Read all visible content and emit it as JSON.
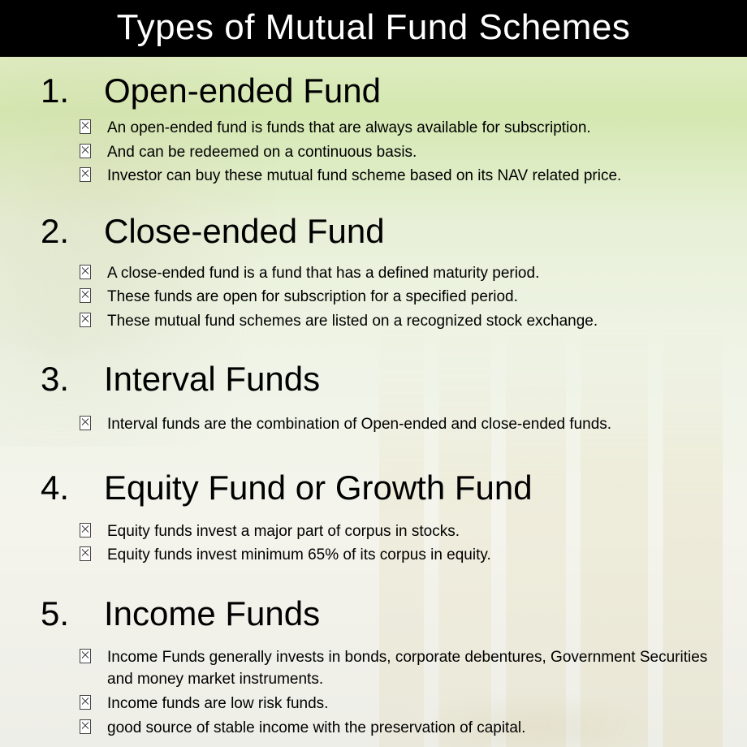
{
  "colors": {
    "header_bg": "#000000",
    "header_text": "#ffffff",
    "body_text": "#000000",
    "bg_top": "#e8f0d0",
    "bg_mid": "#d4e8b0",
    "bg_bottom": "#eeeee8",
    "coin_tint": "#c8b464"
  },
  "typography": {
    "header_fontsize": 44,
    "section_heading_fontsize": 42,
    "bullet_fontsize": 19,
    "font_family": "Segoe UI / Helvetica Neue"
  },
  "title": "Types of Mutual Fund Schemes",
  "sections": [
    {
      "num": "1.",
      "heading": "Open-ended Fund",
      "bullets": [
        "An open-ended fund is funds that are always available for subscription.",
        "And can be redeemed on a continuous basis.",
        "Investor can buy these mutual fund scheme based on its NAV related price."
      ]
    },
    {
      "num": "2.",
      "heading": "Close-ended Fund",
      "bullets": [
        "A close-ended fund is a fund that has a defined maturity period.",
        "These funds are open for subscription for a specified period.",
        "These mutual fund schemes are listed on a recognized stock exchange."
      ]
    },
    {
      "num": "3.",
      "heading": "Interval Funds",
      "bullets": [
        "Interval funds are the combination of Open-ended and close-ended funds."
      ]
    },
    {
      "num": "4.",
      "heading": "Equity Fund or Growth Fund",
      "bullets": [
        "Equity funds invest a major part of corpus in stocks.",
        "Equity funds invest minimum 65% of its corpus in equity."
      ]
    },
    {
      "num": "5.",
      "heading": "Income Funds",
      "bullets": [
        "Income Funds generally invests in bonds, corporate debentures, Government Securities and money market instruments.",
        "Income funds are low risk funds.",
        "good source of stable income with the preservation of capital."
      ]
    }
  ]
}
